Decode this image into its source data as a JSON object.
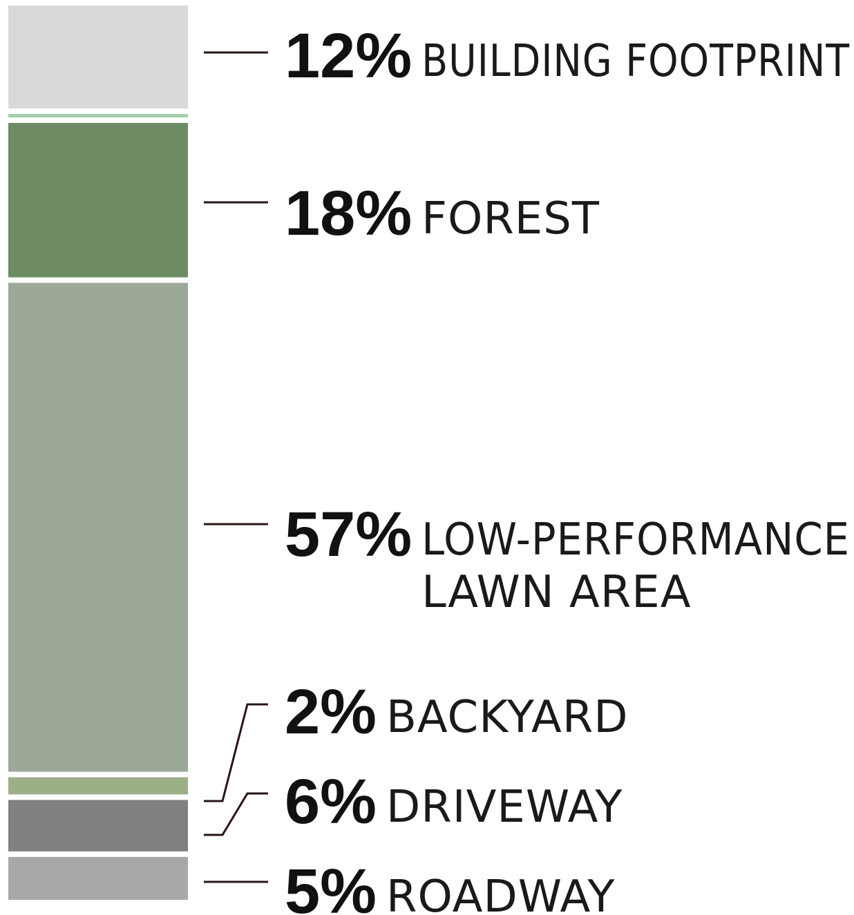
{
  "chart_data": {
    "type": "bar",
    "orientation": "stacked-vertical",
    "unit": "%",
    "segments": [
      {
        "key": "building",
        "value": 12,
        "pct": "12%",
        "label_lines": [
          "BUILDING FOOTPRINT"
        ],
        "color": "#d9d9d9",
        "labeled": true
      },
      {
        "key": "strip",
        "value": 0.4,
        "pct": "",
        "label_lines": [],
        "color": "#a2cfa9",
        "labeled": false
      },
      {
        "key": "forest",
        "value": 18,
        "pct": "18%",
        "label_lines": [
          "FOREST"
        ],
        "color": "#6e8c63",
        "labeled": true
      },
      {
        "key": "lawn",
        "value": 57,
        "pct": "57%",
        "label_lines": [
          "LOW-PERFORMANCE",
          "LAWN AREA"
        ],
        "color": "#9ca999",
        "labeled": true
      },
      {
        "key": "backyard",
        "value": 2,
        "pct": "2%",
        "label_lines": [
          "BACKYARD"
        ],
        "color": "#9caf86",
        "labeled": true
      },
      {
        "key": "driveway",
        "value": 6,
        "pct": "6%",
        "label_lines": [
          "DRIVEWAY"
        ],
        "color": "#808080",
        "labeled": true
      },
      {
        "key": "roadway",
        "value": 5,
        "pct": "5%",
        "label_lines": [
          "ROADWAY"
        ],
        "color": "#a9a7a8",
        "labeled": true
      }
    ]
  }
}
